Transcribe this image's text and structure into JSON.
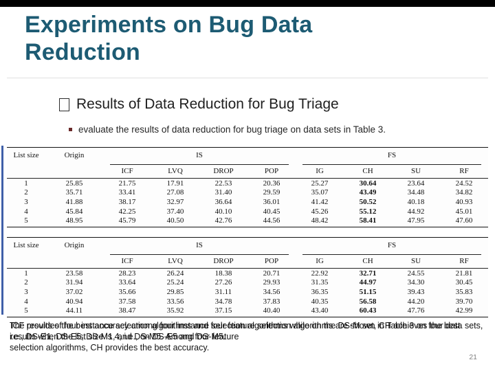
{
  "slide": {
    "title": "Experiments on Bug Data Reduction",
    "bullet": "Results of Data Reduction for Bug Triage",
    "sub_bullet": "evaluate the results of data reduction for bug triage on data sets in Table 3.",
    "page_number": "21"
  },
  "tables": [
    {
      "row_header": "List size",
      "origin_header": "Origin",
      "group_headers": [
        "IS",
        "FS"
      ],
      "col_headers": [
        "ICF",
        "LVQ",
        "DROP",
        "POP",
        "IG",
        "CH",
        "SU",
        "RF"
      ],
      "emphasis_column": "CH",
      "rows": [
        {
          "list_size": "1",
          "origin": "25.85",
          "values": [
            "21.75",
            "17.91",
            "22.53",
            "20.36",
            "25.27",
            "30.64",
            "23.64",
            "24.52"
          ]
        },
        {
          "list_size": "2",
          "origin": "35.71",
          "values": [
            "33.41",
            "27.08",
            "31.40",
            "29.59",
            "35.07",
            "43.49",
            "34.48",
            "34.82"
          ]
        },
        {
          "list_size": "3",
          "origin": "41.88",
          "values": [
            "38.17",
            "32.97",
            "36.64",
            "36.01",
            "41.42",
            "50.52",
            "40.18",
            "40.93"
          ]
        },
        {
          "list_size": "4",
          "origin": "45.84",
          "values": [
            "42.25",
            "37.40",
            "40.10",
            "40.45",
            "45.26",
            "55.12",
            "44.92",
            "45.01"
          ]
        },
        {
          "list_size": "5",
          "origin": "48.95",
          "values": [
            "45.79",
            "40.50",
            "42.76",
            "44.56",
            "48.42",
            "58.41",
            "47.95",
            "47.60"
          ]
        }
      ]
    },
    {
      "row_header": "List size",
      "origin_header": "Origin",
      "group_headers": [
        "IS",
        "FS"
      ],
      "col_headers": [
        "ICF",
        "LVQ",
        "DROP",
        "POP",
        "IG",
        "CH",
        "SU",
        "RF"
      ],
      "emphasis_column": "CH",
      "rows": [
        {
          "list_size": "1",
          "origin": "23.58",
          "values": [
            "28.23",
            "26.24",
            "18.38",
            "20.71",
            "22.92",
            "32.71",
            "24.55",
            "21.81"
          ]
        },
        {
          "list_size": "2",
          "origin": "31.94",
          "values": [
            "33.64",
            "25.24",
            "27.26",
            "29.93",
            "31.35",
            "44.97",
            "34.30",
            "30.45"
          ]
        },
        {
          "list_size": "3",
          "origin": "37.02",
          "values": [
            "35.66",
            "29.85",
            "31.11",
            "34.56",
            "36.35",
            "51.15",
            "39.43",
            "35.83"
          ]
        },
        {
          "list_size": "4",
          "origin": "40.94",
          "values": [
            "37.58",
            "33.56",
            "34.78",
            "37.83",
            "40.35",
            "56.58",
            "44.20",
            "39.70"
          ]
        },
        {
          "list_size": "5",
          "origin": "44.11",
          "values": [
            "38.47",
            "35.92",
            "37.15",
            "40.40",
            "43.40",
            "60.43",
            "47.76",
            "42.99"
          ]
        }
      ]
    }
  ],
  "footer": {
    "overlay_text_1": "The results of four instance selection algorithms and four feature selection algorithms are shown in Table 3 on four data sets, i.e., DS-E1, DS-E5, DS-M1, and DS-M5. Among four feature",
    "overlay_text_2": "ICF provides the best accuracy among four instance selection algorithms while on the DS-M set, CH achieves the best results when the list size is 4, i.e., on DS-E5 and DS-M5.",
    "last_line": "selection algorithms, CH provides the best accuracy."
  }
}
